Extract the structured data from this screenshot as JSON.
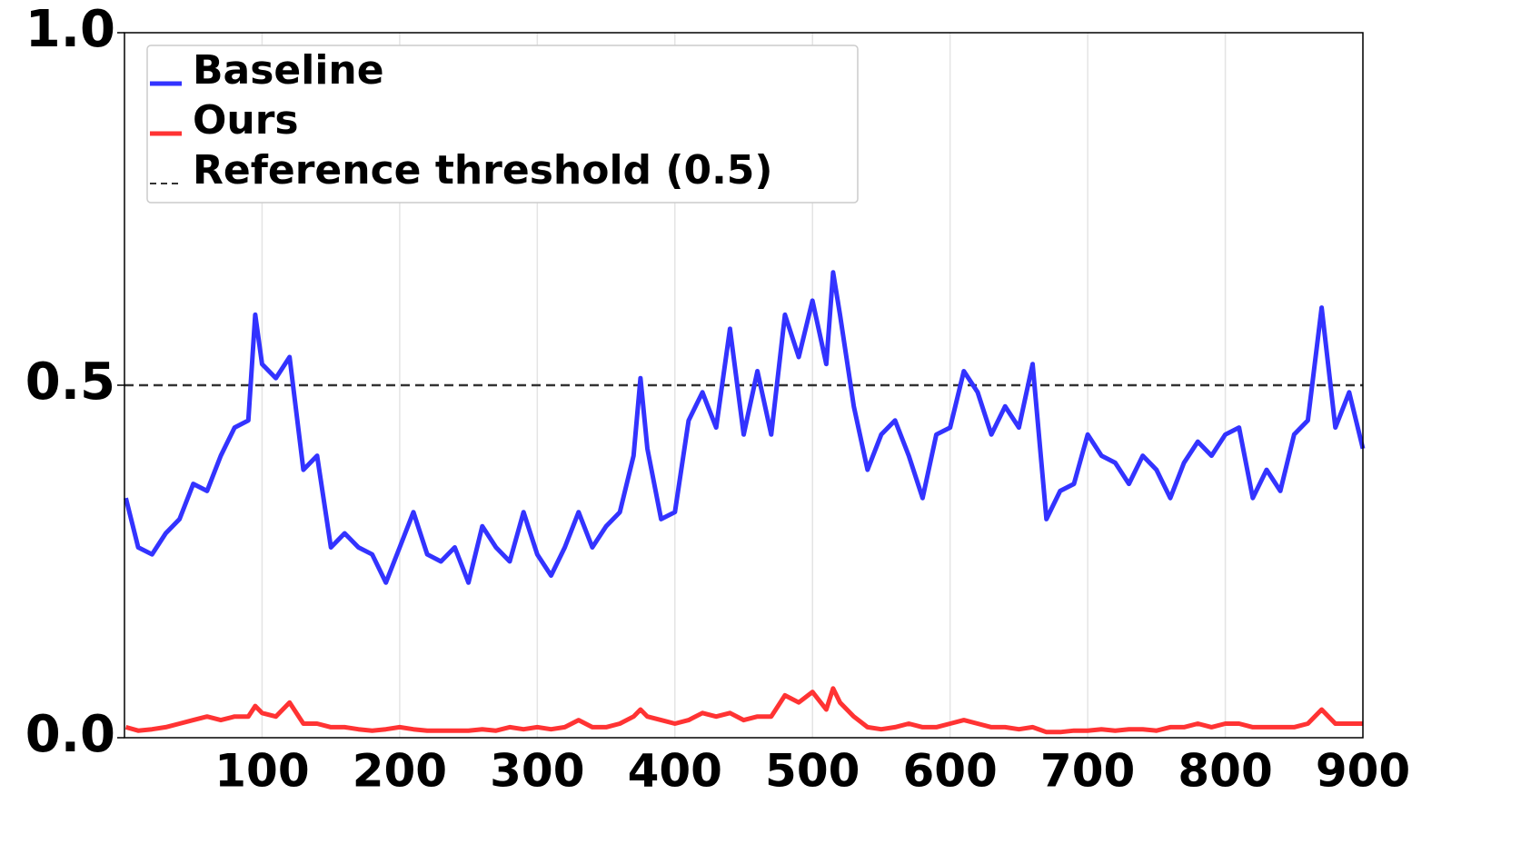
{
  "chart_data": {
    "type": "line",
    "x": [
      1,
      10,
      20,
      30,
      40,
      50,
      60,
      70,
      80,
      90,
      95,
      100,
      110,
      120,
      130,
      140,
      150,
      160,
      170,
      180,
      190,
      200,
      210,
      220,
      230,
      240,
      250,
      260,
      270,
      280,
      290,
      300,
      310,
      320,
      330,
      340,
      350,
      360,
      370,
      375,
      380,
      390,
      400,
      410,
      420,
      430,
      440,
      450,
      460,
      470,
      480,
      490,
      500,
      510,
      515,
      520,
      530,
      540,
      550,
      560,
      570,
      580,
      590,
      600,
      610,
      620,
      630,
      640,
      650,
      660,
      670,
      680,
      690,
      700,
      710,
      720,
      730,
      740,
      750,
      760,
      770,
      780,
      790,
      800,
      810,
      820,
      830,
      840,
      850,
      860,
      870,
      880,
      890,
      900
    ],
    "series": [
      {
        "name": "Baseline",
        "color": "#3333ff",
        "values": [
          0.34,
          0.27,
          0.26,
          0.29,
          0.31,
          0.36,
          0.35,
          0.4,
          0.44,
          0.45,
          0.6,
          0.53,
          0.51,
          0.54,
          0.38,
          0.4,
          0.27,
          0.29,
          0.27,
          0.26,
          0.22,
          0.27,
          0.32,
          0.26,
          0.25,
          0.27,
          0.22,
          0.3,
          0.27,
          0.25,
          0.32,
          0.26,
          0.23,
          0.27,
          0.32,
          0.27,
          0.3,
          0.32,
          0.4,
          0.51,
          0.41,
          0.31,
          0.32,
          0.45,
          0.49,
          0.44,
          0.58,
          0.43,
          0.52,
          0.43,
          0.6,
          0.54,
          0.62,
          0.53,
          0.66,
          0.6,
          0.47,
          0.38,
          0.43,
          0.45,
          0.4,
          0.34,
          0.43,
          0.44,
          0.52,
          0.49,
          0.43,
          0.47,
          0.44,
          0.53,
          0.31,
          0.35,
          0.36,
          0.43,
          0.4,
          0.39,
          0.36,
          0.4,
          0.38,
          0.34,
          0.39,
          0.42,
          0.4,
          0.43,
          0.44,
          0.34,
          0.38,
          0.35,
          0.43,
          0.45,
          0.61,
          0.44,
          0.49,
          0.41
        ]
      },
      {
        "name": "Ours",
        "color": "#ff3333",
        "values": [
          0.015,
          0.01,
          0.012,
          0.015,
          0.02,
          0.025,
          0.03,
          0.025,
          0.03,
          0.03,
          0.045,
          0.035,
          0.03,
          0.05,
          0.02,
          0.02,
          0.015,
          0.015,
          0.012,
          0.01,
          0.012,
          0.015,
          0.012,
          0.01,
          0.01,
          0.01,
          0.01,
          0.012,
          0.01,
          0.015,
          0.012,
          0.015,
          0.012,
          0.015,
          0.025,
          0.015,
          0.015,
          0.02,
          0.03,
          0.04,
          0.03,
          0.025,
          0.02,
          0.025,
          0.035,
          0.03,
          0.035,
          0.025,
          0.03,
          0.03,
          0.06,
          0.05,
          0.065,
          0.04,
          0.07,
          0.05,
          0.03,
          0.015,
          0.012,
          0.015,
          0.02,
          0.015,
          0.015,
          0.02,
          0.025,
          0.02,
          0.015,
          0.015,
          0.012,
          0.015,
          0.008,
          0.008,
          0.01,
          0.01,
          0.012,
          0.01,
          0.012,
          0.012,
          0.01,
          0.015,
          0.015,
          0.02,
          0.015,
          0.02,
          0.02,
          0.015,
          0.015,
          0.015,
          0.015,
          0.02,
          0.04,
          0.02,
          0.02,
          0.02
        ]
      }
    ],
    "reference_line": {
      "name": "Reference threshold (0.5)",
      "value": 0.5,
      "color": "#333333",
      "dashed": true
    },
    "xlim": [
      0,
      900
    ],
    "xticks": [
      100,
      200,
      300,
      400,
      500,
      600,
      700,
      800,
      900
    ],
    "ylim": [
      0,
      1
    ],
    "yticks": [
      {
        "value": 0,
        "label": "0.0"
      },
      {
        "value": 0.5,
        "label": "0.5"
      },
      {
        "value": 1,
        "label": "1.0"
      }
    ],
    "xgrid": true,
    "legend": "upper left"
  }
}
